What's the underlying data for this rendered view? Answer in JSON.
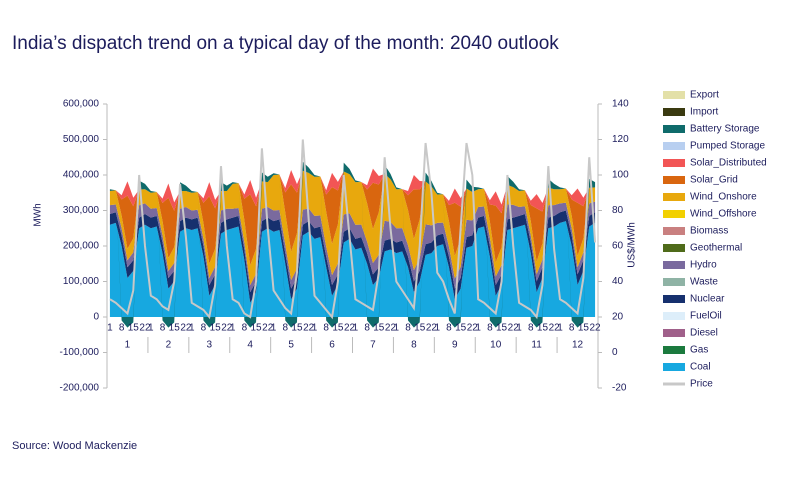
{
  "chart_data": {
    "type": "stacked_area",
    "title": "India’s dispatch trend on a typical day of the month: 2040 outlook",
    "source": "Source: Wood Mackenzie",
    "y_label": "MWh",
    "y2_label": "US$/MWh",
    "categories": [
      "1",
      null,
      "8",
      null,
      "15",
      null,
      "22",
      "1",
      null,
      "8",
      null,
      "15",
      null,
      "22",
      "1",
      null,
      "8",
      null,
      "15",
      null,
      "22",
      "1",
      null,
      "8",
      null,
      "15",
      null,
      "22",
      "1",
      null,
      "8",
      null,
      "15",
      null,
      "22",
      "1",
      null,
      "8",
      null,
      "15",
      null,
      "22",
      "1",
      null,
      "8",
      null,
      "15",
      null,
      "22",
      "1",
      null,
      "8",
      null,
      "15",
      null,
      "22",
      "1",
      null,
      "8",
      null,
      "15",
      null,
      "22",
      "1",
      null,
      "8",
      null,
      "15",
      null,
      "22",
      "1",
      null,
      "8",
      null,
      "15",
      null,
      "22",
      "1",
      null,
      "8",
      null,
      "15",
      null,
      "22"
    ],
    "month_labels": [
      "1",
      "2",
      "3",
      "4",
      "5",
      "6",
      "7",
      "8",
      "9",
      "10",
      "11",
      "12"
    ],
    "ylim": [
      -200000,
      600000
    ],
    "yticks": [
      {
        "value": -200000,
        "label": "-200,000"
      },
      {
        "value": -100000,
        "label": "-100,000"
      },
      0,
      {
        "value": 100000,
        "label": "100,000"
      },
      {
        "value": 200000,
        "label": "200,000"
      },
      {
        "value": 300000,
        "label": "300,000"
      },
      {
        "value": 400000,
        "label": "400,000"
      },
      {
        "value": 500000,
        "label": "500,000"
      },
      {
        "value": 600000,
        "label": "600,000"
      }
    ],
    "y2lim": [
      -20,
      140
    ],
    "y2ticks": [
      -20,
      0,
      20,
      40,
      60,
      80,
      100,
      120,
      140
    ],
    "series": [
      {
        "name": "Export",
        "color": "#e3e0a8"
      },
      {
        "name": "Import",
        "color": "#3a3a10"
      },
      {
        "name": "Battery Storage",
        "color": "#0f6b6b",
        "values": [
          5000,
          0,
          -10000,
          -30000,
          -15000,
          25000,
          15000,
          5000,
          0,
          -10000,
          -30000,
          -15000,
          25000,
          15000,
          5000,
          0,
          -10000,
          -30000,
          -15000,
          25000,
          15000,
          5000,
          0,
          -10000,
          -30000,
          -15000,
          25000,
          15000,
          5000,
          0,
          -10000,
          -30000,
          -15000,
          25000,
          15000,
          5000,
          0,
          -10000,
          -30000,
          -15000,
          25000,
          15000,
          5000,
          0,
          -10000,
          -30000,
          -15000,
          25000,
          15000,
          5000,
          0,
          -10000,
          -30000,
          -15000,
          25000,
          15000,
          5000,
          0,
          -10000,
          -30000,
          -15000,
          25000,
          15000,
          5000,
          0,
          -10000,
          -30000,
          -15000,
          25000,
          15000,
          5000,
          0,
          -10000,
          -30000,
          -15000,
          25000,
          15000,
          5000,
          0,
          -10000,
          -30000,
          -15000,
          25000,
          15000
        ]
      },
      {
        "name": "Pumped Storage",
        "color": "#b8cff0"
      },
      {
        "name": "Solar_Distributed",
        "color": "#f25555",
        "values": [
          0,
          0,
          12000,
          40000,
          24000,
          0,
          0,
          0,
          0,
          12000,
          40000,
          24000,
          0,
          0,
          0,
          0,
          12000,
          40000,
          24000,
          0,
          0,
          0,
          0,
          12000,
          40000,
          24000,
          0,
          0,
          0,
          0,
          12000,
          40000,
          24000,
          0,
          0,
          0,
          0,
          12000,
          40000,
          24000,
          0,
          0,
          0,
          0,
          12000,
          40000,
          24000,
          0,
          0,
          0,
          0,
          12000,
          40000,
          24000,
          0,
          0,
          0,
          0,
          12000,
          40000,
          24000,
          0,
          0,
          0,
          0,
          12000,
          40000,
          24000,
          0,
          0,
          0,
          0,
          12000,
          40000,
          24000,
          0,
          0,
          0,
          0,
          12000,
          40000,
          24000,
          0,
          0
        ]
      },
      {
        "name": "Solar_Grid",
        "color": "#d9660f",
        "values": [
          0,
          0,
          45000,
          150000,
          90000,
          0,
          0,
          0,
          0,
          51000,
          170000,
          102000,
          0,
          0,
          0,
          0,
          57000,
          190000,
          114000,
          0,
          0,
          0,
          0,
          60000,
          200000,
          120000,
          0,
          0,
          0,
          0,
          57000,
          190000,
          114000,
          0,
          0,
          0,
          0,
          48000,
          160000,
          96000,
          0,
          0,
          0,
          0,
          39000,
          130000,
          78000,
          0,
          0,
          0,
          0,
          42000,
          140000,
          84000,
          0,
          0,
          0,
          0,
          45000,
          150000,
          90000,
          0,
          0,
          0,
          0,
          48000,
          160000,
          96000,
          0,
          0,
          0,
          0,
          45000,
          150000,
          90000,
          0,
          0,
          0,
          0,
          45000,
          150000,
          90000,
          0,
          0
        ]
      },
      {
        "name": "Wind_Onshore",
        "color": "#e8a80d",
        "values": [
          40000,
          40000,
          36000,
          32000,
          40000,
          44000,
          40000,
          45000,
          45000,
          40500,
          36000,
          45000,
          49500,
          45000,
          50000,
          50000,
          45000,
          40000,
          50000,
          55000,
          50000,
          70000,
          70000,
          63000,
          56000,
          70000,
          77000,
          70000,
          100000,
          100000,
          90000,
          80000,
          100000,
          110000,
          100000,
          110000,
          110000,
          99000,
          88000,
          110000,
          121000,
          110000,
          120000,
          120000,
          108000,
          96000,
          120000,
          132000,
          120000,
          110000,
          110000,
          99000,
          88000,
          110000,
          121000,
          110000,
          80000,
          80000,
          72000,
          64000,
          80000,
          88000,
          80000,
          50000,
          50000,
          45000,
          40000,
          50000,
          55000,
          50000,
          45000,
          45000,
          40500,
          36000,
          45000,
          49500,
          45000,
          40000,
          40000,
          36000,
          32000,
          40000,
          44000,
          40000
        ]
      },
      {
        "name": "Wind_Offshore",
        "color": "#f2d000"
      },
      {
        "name": "Biomass",
        "color": "#c98080"
      },
      {
        "name": "Geothermal",
        "color": "#4f6b1a"
      },
      {
        "name": "Hydro",
        "color": "#7a6a9e",
        "values": [
          25000,
          22000,
          20000,
          20000,
          22000,
          35000,
          30000,
          25000,
          22000,
          20000,
          20000,
          22000,
          35000,
          30000,
          25000,
          22000,
          20000,
          20000,
          22000,
          35000,
          30000,
          25000,
          22000,
          20000,
          20000,
          22000,
          35000,
          30000,
          30000,
          26400,
          24000,
          24000,
          26400,
          42000,
          36000,
          35000,
          30800,
          28000,
          28000,
          30800,
          49000,
          42000,
          40000,
          35200,
          32000,
          32000,
          35200,
          56000,
          48000,
          40000,
          35200,
          32000,
          32000,
          35200,
          56000,
          48000,
          35000,
          30800,
          28000,
          28000,
          30800,
          49000,
          42000,
          30000,
          26400,
          24000,
          24000,
          26400,
          42000,
          36000,
          25000,
          22000,
          20000,
          20000,
          22000,
          35000,
          30000,
          25000,
          22000,
          20000,
          20000,
          22000,
          35000,
          30000
        ]
      },
      {
        "name": "Waste",
        "color": "#8fb3a5"
      },
      {
        "name": "Nuclear",
        "color": "#16306e",
        "values": [
          30000,
          30000,
          30000,
          30000,
          30000,
          30000,
          30000,
          30000,
          30000,
          30000,
          30000,
          30000,
          30000,
          30000,
          30000,
          30000,
          30000,
          30000,
          30000,
          30000,
          30000,
          30000,
          30000,
          30000,
          30000,
          30000,
          30000,
          30000,
          30000,
          30000,
          30000,
          30000,
          30000,
          30000,
          30000,
          30000,
          30000,
          30000,
          30000,
          30000,
          30000,
          30000,
          30000,
          30000,
          30000,
          30000,
          30000,
          30000,
          30000,
          30000,
          30000,
          30000,
          30000,
          30000,
          30000,
          30000,
          30000,
          30000,
          30000,
          30000,
          30000,
          30000,
          30000,
          30000,
          30000,
          30000,
          30000,
          30000,
          30000,
          30000,
          30000,
          30000,
          30000,
          30000,
          30000,
          30000,
          30000,
          30000,
          30000,
          30000,
          30000,
          30000,
          30000,
          30000
        ]
      },
      {
        "name": "FuelOil",
        "color": "#ddeefa"
      },
      {
        "name": "Diesel",
        "color": "#a0608a"
      },
      {
        "name": "Gas",
        "color": "#1b7a3e"
      },
      {
        "name": "Coal",
        "color": "#17a8e0",
        "values": [
          260000,
          265000,
          200000,
          110000,
          130000,
          250000,
          260000,
          250000,
          255000,
          180000,
          80000,
          100000,
          240000,
          250000,
          245000,
          250000,
          170000,
          60000,
          90000,
          235000,
          245000,
          250000,
          255000,
          160000,
          40000,
          70000,
          240000,
          250000,
          240000,
          245000,
          150000,
          50000,
          80000,
          230000,
          240000,
          220000,
          225000,
          140000,
          60000,
          90000,
          210000,
          220000,
          190000,
          195000,
          150000,
          90000,
          110000,
          185000,
          190000,
          180000,
          185000,
          140000,
          70000,
          100000,
          175000,
          180000,
          200000,
          205000,
          140000,
          50000,
          80000,
          195000,
          200000,
          250000,
          255000,
          170000,
          60000,
          90000,
          245000,
          250000,
          255000,
          260000,
          180000,
          70000,
          110000,
          250000,
          255000,
          265000,
          270000,
          200000,
          90000,
          130000,
          255000,
          265000
        ]
      },
      {
        "name": "Price",
        "color": "#c8c8c8",
        "type": "line",
        "axis": "y2",
        "values": [
          30,
          28,
          25,
          22,
          35,
          100,
          60,
          32,
          30,
          26,
          24,
          40,
          95,
          65,
          28,
          26,
          24,
          20,
          38,
          105,
          60,
          30,
          28,
          22,
          20,
          40,
          115,
          70,
          35,
          30,
          25,
          22,
          45,
          120,
          75,
          32,
          28,
          24,
          20,
          40,
          100,
          65,
          30,
          28,
          26,
          24,
          45,
          110,
          70,
          40,
          35,
          30,
          25,
          60,
          118,
          90,
          45,
          40,
          30,
          22,
          70,
          118,
          100,
          30,
          28,
          25,
          22,
          40,
          100,
          60,
          28,
          26,
          24,
          20,
          38,
          105,
          58,
          30,
          28,
          25,
          22,
          42,
          110,
          62
        ]
      }
    ]
  }
}
